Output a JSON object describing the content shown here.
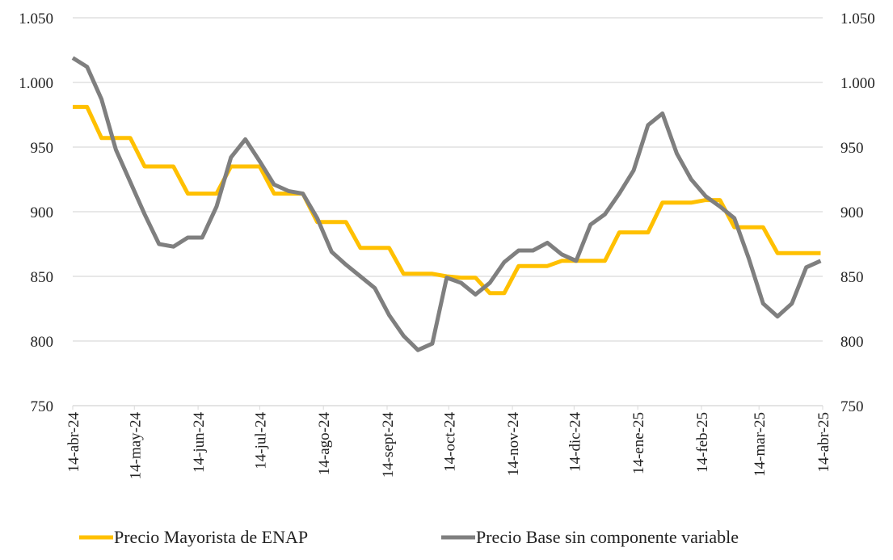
{
  "chart_data": {
    "type": "line",
    "x": [
      0,
      7,
      14,
      21,
      28,
      35,
      42,
      49,
      56,
      63,
      70,
      77,
      84,
      91,
      98,
      105,
      112,
      119,
      126,
      133,
      140,
      147,
      154,
      161,
      168,
      175,
      182,
      189,
      196,
      203,
      210,
      217,
      224,
      231,
      238,
      245,
      252,
      259,
      266,
      273,
      280,
      287,
      294,
      301,
      308,
      315,
      322,
      329,
      336,
      343,
      350,
      357,
      364
    ],
    "xlim": [
      0,
      365
    ],
    "xticks": [
      {
        "value": 0,
        "label": "14-abr-24"
      },
      {
        "value": 30,
        "label": "14-may-24"
      },
      {
        "value": 61,
        "label": "14-jun-24"
      },
      {
        "value": 91,
        "label": "14-jul-24"
      },
      {
        "value": 122,
        "label": "14-ago-24"
      },
      {
        "value": 153,
        "label": "14-sept-24"
      },
      {
        "value": 183,
        "label": "14-oct-24"
      },
      {
        "value": 214,
        "label": "14-nov-24"
      },
      {
        "value": 244,
        "label": "14-dic-24"
      },
      {
        "value": 275,
        "label": "14-ene-25"
      },
      {
        "value": 306,
        "label": "14-feb-25"
      },
      {
        "value": 334,
        "label": "14-mar-25"
      },
      {
        "value": 365,
        "label": "14-abr-25"
      }
    ],
    "ylim": [
      750,
      1050
    ],
    "yticks": [
      750,
      800,
      850,
      900,
      950,
      {
        "value": 1000,
        "label": "1.000"
      },
      {
        "value": 1050,
        "label": "1.050"
      }
    ],
    "y2lim": [
      750,
      1050
    ],
    "y2ticks": [
      750,
      800,
      850,
      900,
      950,
      {
        "value": 1000,
        "label": "1.000"
      },
      {
        "value": 1050,
        "label": "1.050"
      }
    ],
    "grid": true,
    "legend": "bottom",
    "series": [
      {
        "name": "Precio Mayorista de ENAP",
        "color": "#ffc000",
        "values": [
          981,
          981,
          957,
          957,
          957,
          935,
          935,
          935,
          914,
          914,
          914,
          935,
          935,
          935,
          914,
          914,
          914,
          892,
          892,
          892,
          872,
          872,
          872,
          852,
          852,
          852,
          850,
          849,
          849,
          837,
          837,
          858,
          858,
          858,
          862,
          862,
          862,
          862,
          884,
          884,
          884,
          907,
          907,
          907,
          909,
          909,
          888,
          888,
          888,
          868,
          868,
          868,
          868
        ]
      },
      {
        "name": "Precio Base sin componente variable",
        "color": "#7f7f7f",
        "values": [
          1019,
          1012,
          987,
          948,
          923,
          898,
          875,
          873,
          880,
          880,
          904,
          942,
          956,
          939,
          921,
          916,
          914,
          895,
          869,
          859,
          850,
          841,
          820,
          804,
          793,
          798,
          849,
          845,
          836,
          845,
          861,
          870,
          870,
          876,
          867,
          862,
          890,
          898,
          914,
          932,
          967,
          976,
          945,
          925,
          912,
          904,
          895,
          864,
          829,
          819,
          829,
          857,
          862
        ]
      }
    ]
  }
}
